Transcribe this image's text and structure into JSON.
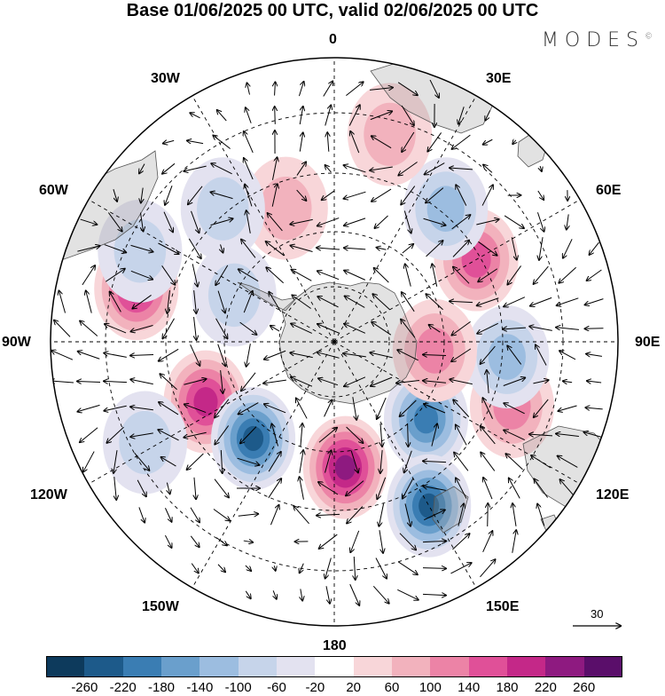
{
  "title": "Base 01/06/2025 00 UTC, valid 02/06/2025 00 UTC",
  "brand": "MODES",
  "brand_mark": "©",
  "longitude_labels": {
    "top": "0",
    "top_left": "30W",
    "top_right": "30E",
    "upper_left": "60W",
    "upper_right": "60E",
    "left": "90W",
    "right": "90E",
    "lower_left": "120W",
    "lower_right": "120E",
    "bottom_left": "150W",
    "bottom_right": "150E",
    "bottom": "180"
  },
  "reference_vector": {
    "label": "30"
  },
  "colorbar": {
    "colors": [
      "#0d3a5c",
      "#1d5a8a",
      "#3a7db3",
      "#6a9fcc",
      "#9cbde0",
      "#c6d4ea",
      "#e3e2f0",
      "#ffffff",
      "#f8d6d9",
      "#f2b2bd",
      "#ec83a6",
      "#e05098",
      "#c42888",
      "#8e1a80",
      "#5a0e6a"
    ],
    "labels": [
      "-260",
      "-220",
      "-180",
      "-140",
      "-100",
      "-60",
      "-20",
      "20",
      "60",
      "100",
      "140",
      "180",
      "220",
      "260"
    ]
  },
  "anomaly_centers": [
    {
      "sign": "positive",
      "lon": -75,
      "lat": -25,
      "value": 200
    },
    {
      "sign": "positive",
      "lon": -115,
      "lat": -45,
      "value": 180
    },
    {
      "sign": "negative",
      "lon": -140,
      "lat": -50,
      "value": -240
    },
    {
      "sign": "positive",
      "lon": 175,
      "lat": -50,
      "value": 240
    },
    {
      "sign": "negative",
      "lon": 130,
      "lat": -52,
      "value": -180
    },
    {
      "sign": "negative",
      "lon": 150,
      "lat": -30,
      "value": -240
    },
    {
      "sign": "positive",
      "lon": 110,
      "lat": -30,
      "value": 120
    },
    {
      "sign": "negative",
      "lon": 95,
      "lat": -35,
      "value": -100
    },
    {
      "sign": "positive",
      "lon": 95,
      "lat": -58,
      "value": 100
    },
    {
      "sign": "positive",
      "lon": 60,
      "lat": -38,
      "value": 160
    },
    {
      "sign": "negative",
      "lon": 40,
      "lat": -35,
      "value": -120
    },
    {
      "sign": "positive",
      "lon": 15,
      "lat": -22,
      "value": 80
    },
    {
      "sign": "positive",
      "lon": -20,
      "lat": -45,
      "value": 80
    },
    {
      "sign": "negative",
      "lon": -40,
      "lat": -35,
      "value": -80
    },
    {
      "sign": "negative",
      "lon": -65,
      "lat": -22,
      "value": -80
    },
    {
      "sign": "negative",
      "lon": -65,
      "lat": -55,
      "value": -80
    },
    {
      "sign": "negative",
      "lon": -118,
      "lat": -22,
      "value": -80
    }
  ]
}
